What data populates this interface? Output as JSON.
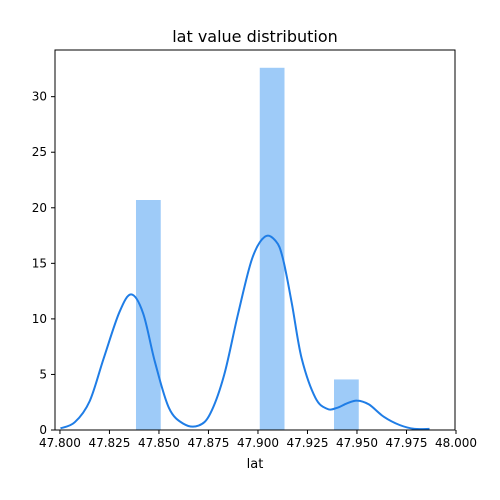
{
  "chart_data": {
    "type": "bar",
    "title": "lat value distribution",
    "xlabel": "lat",
    "ylabel": "",
    "xlim": [
      47.7975,
      47.9995
    ],
    "ylim": [
      0,
      34.2
    ],
    "xticks": [
      47.8,
      47.825,
      47.85,
      47.875,
      47.9,
      47.925,
      47.95,
      47.975,
      48.0
    ],
    "xtick_labels": [
      "47.800",
      "47.825",
      "47.850",
      "47.875",
      "47.900",
      "47.925",
      "47.950",
      "47.975",
      "48.000"
    ],
    "yticks": [
      0,
      5,
      10,
      15,
      20,
      25,
      30
    ],
    "ytick_labels": [
      "0",
      "5",
      "10",
      "15",
      "20",
      "25",
      "30"
    ],
    "bars": [
      {
        "x0": 47.8384,
        "x1": 47.8509,
        "height": 20.7
      },
      {
        "x0": 47.8509,
        "x1": 47.8634,
        "height": 0
      },
      {
        "x0": 47.8634,
        "x1": 47.8759,
        "height": 0
      },
      {
        "x0": 47.8759,
        "x1": 47.8884,
        "height": 0
      },
      {
        "x0": 47.8884,
        "x1": 47.9009,
        "height": 0
      },
      {
        "x0": 47.9009,
        "x1": 47.9134,
        "height": 32.6
      },
      {
        "x0": 47.9134,
        "x1": 47.9259,
        "height": 0
      },
      {
        "x0": 47.9259,
        "x1": 47.9384,
        "height": 0
      },
      {
        "x0": 47.9384,
        "x1": 47.9509,
        "height": 4.55
      }
    ],
    "kde": {
      "x": [
        47.8003,
        47.8075,
        47.815,
        47.822,
        47.83,
        47.836,
        47.842,
        47.848,
        47.855,
        47.8625,
        47.87,
        47.876,
        47.883,
        47.89,
        47.897,
        47.9035,
        47.909,
        47.9125,
        47.917,
        47.922,
        47.929,
        47.935,
        47.94,
        47.945,
        47.95,
        47.956,
        47.9635,
        47.9715,
        47.979,
        47.9866
      ],
      "y": [
        0.15,
        0.7,
        2.6,
        6.4,
        10.6,
        12.2,
        10.5,
        6.1,
        2.0,
        0.55,
        0.4,
        1.5,
        5.0,
        10.5,
        15.4,
        17.4,
        17.0,
        15.5,
        11.5,
        6.5,
        2.9,
        1.9,
        2.0,
        2.4,
        2.65,
        2.3,
        1.2,
        0.45,
        0.1,
        0.1
      ]
    },
    "bar_color": "#9ecbf8",
    "line_color": "#1f7de6",
    "grid": false,
    "legend": "none"
  }
}
